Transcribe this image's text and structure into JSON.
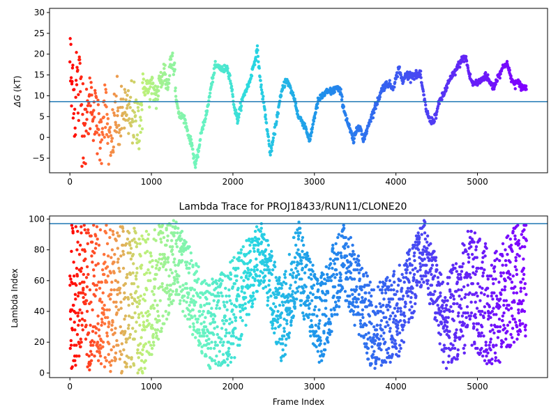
{
  "chart_data": [
    {
      "type": "scatter",
      "title": "",
      "xlabel": "",
      "ylabel_main": "ΔG",
      "ylabel_unit": " (kT)",
      "xlim": [
        -250,
        5860
      ],
      "ylim": [
        -8.5,
        31
      ],
      "xticks": [
        0,
        1000,
        2000,
        3000,
        4000,
        5000
      ],
      "yticks": [
        -5,
        0,
        5,
        10,
        15,
        20,
        25,
        30
      ],
      "hline": 8.6,
      "hline_color": "#1f77b4",
      "colormap": "rainbow (reversed: red at frame 0, violet at last frame)",
      "x_range": [
        0,
        5600
      ],
      "anchors": [
        [
          0,
          20
        ],
        [
          20,
          10
        ],
        [
          40,
          17
        ],
        [
          60,
          5
        ],
        [
          80,
          15
        ],
        [
          100,
          10
        ],
        [
          130,
          13
        ],
        [
          160,
          6
        ],
        [
          200,
          3
        ],
        [
          260,
          10
        ],
        [
          320,
          4
        ],
        [
          380,
          0
        ],
        [
          420,
          9
        ],
        [
          460,
          2
        ],
        [
          500,
          -4
        ],
        [
          560,
          6
        ],
        [
          620,
          2
        ],
        [
          660,
          8
        ],
        [
          700,
          4
        ],
        [
          760,
          6
        ],
        [
          820,
          3
        ],
        [
          880,
          7
        ],
        [
          920,
          13
        ],
        [
          960,
          11
        ],
        [
          1000,
          12
        ],
        [
          1060,
          10
        ],
        [
          1120,
          14
        ],
        [
          1160,
          16
        ],
        [
          1200,
          12
        ],
        [
          1240,
          19
        ],
        [
          1280,
          19
        ],
        [
          1300,
          10
        ],
        [
          1340,
          5
        ],
        [
          1400,
          5
        ],
        [
          1450,
          1
        ],
        [
          1500,
          -2
        ],
        [
          1540,
          -7
        ],
        [
          1580,
          -3
        ],
        [
          1620,
          2
        ],
        [
          1680,
          6
        ],
        [
          1740,
          13
        ],
        [
          1780,
          17
        ],
        [
          1830,
          17
        ],
        [
          1880,
          16
        ],
        [
          1920,
          17
        ],
        [
          1960,
          15
        ],
        [
          1990,
          11
        ],
        [
          2020,
          7
        ],
        [
          2060,
          4
        ],
        [
          2100,
          8
        ],
        [
          2150,
          11
        ],
        [
          2200,
          13
        ],
        [
          2250,
          17
        ],
        [
          2300,
          21
        ],
        [
          2340,
          13
        ],
        [
          2380,
          8
        ],
        [
          2420,
          2
        ],
        [
          2460,
          -4
        ],
        [
          2500,
          0
        ],
        [
          2550,
          6
        ],
        [
          2600,
          11
        ],
        [
          2650,
          14
        ],
        [
          2700,
          12
        ],
        [
          2760,
          9
        ],
        [
          2800,
          5
        ],
        [
          2850,
          4
        ],
        [
          2900,
          2
        ],
        [
          2940,
          -1
        ],
        [
          3000,
          5
        ],
        [
          3050,
          9
        ],
        [
          3100,
          10
        ],
        [
          3160,
          11
        ],
        [
          3220,
          11
        ],
        [
          3270,
          12
        ],
        [
          3320,
          11
        ],
        [
          3360,
          7
        ],
        [
          3400,
          4
        ],
        [
          3450,
          1
        ],
        [
          3480,
          -1
        ],
        [
          3520,
          2
        ],
        [
          3560,
          3
        ],
        [
          3600,
          -1
        ],
        [
          3660,
          3
        ],
        [
          3720,
          6
        ],
        [
          3780,
          9
        ],
        [
          3840,
          12
        ],
        [
          3900,
          13
        ],
        [
          3960,
          12
        ],
        [
          4000,
          14
        ],
        [
          4040,
          17
        ],
        [
          4080,
          13
        ],
        [
          4120,
          15
        ],
        [
          4200,
          15
        ],
        [
          4250,
          15
        ],
        [
          4300,
          15
        ],
        [
          4340,
          10
        ],
        [
          4380,
          6
        ],
        [
          4420,
          4
        ],
        [
          4460,
          4
        ],
        [
          4500,
          6
        ],
        [
          4540,
          9
        ],
        [
          4580,
          10
        ],
        [
          4640,
          13
        ],
        [
          4700,
          15
        ],
        [
          4760,
          17
        ],
        [
          4820,
          19
        ],
        [
          4860,
          19
        ],
        [
          4900,
          15
        ],
        [
          4940,
          13
        ],
        [
          5000,
          13
        ],
        [
          5060,
          14
        ],
        [
          5100,
          15
        ],
        [
          5160,
          13
        ],
        [
          5200,
          12
        ],
        [
          5260,
          15
        ],
        [
          5320,
          17
        ],
        [
          5360,
          18
        ],
        [
          5400,
          15
        ],
        [
          5440,
          13
        ],
        [
          5500,
          13
        ],
        [
          5550,
          12
        ],
        [
          5600,
          12
        ]
      ]
    },
    {
      "type": "scatter",
      "title": "Lambda Trace for PROJ18433/RUN11/CLONE20",
      "xlabel": "Frame Index",
      "ylabel": "Lambda Index",
      "xlim": [
        -250,
        5860
      ],
      "ylim": [
        -3,
        102
      ],
      "xticks": [
        0,
        1000,
        2000,
        3000,
        4000,
        5000
      ],
      "yticks": [
        0,
        20,
        40,
        60,
        80,
        100
      ],
      "hline": 97,
      "hline_color": "#1f77b4",
      "colormap": "rainbow (reversed: red at frame 0, violet at last frame)",
      "x_range": [
        0,
        5600
      ],
      "y_range": [
        0,
        99
      ]
    }
  ]
}
